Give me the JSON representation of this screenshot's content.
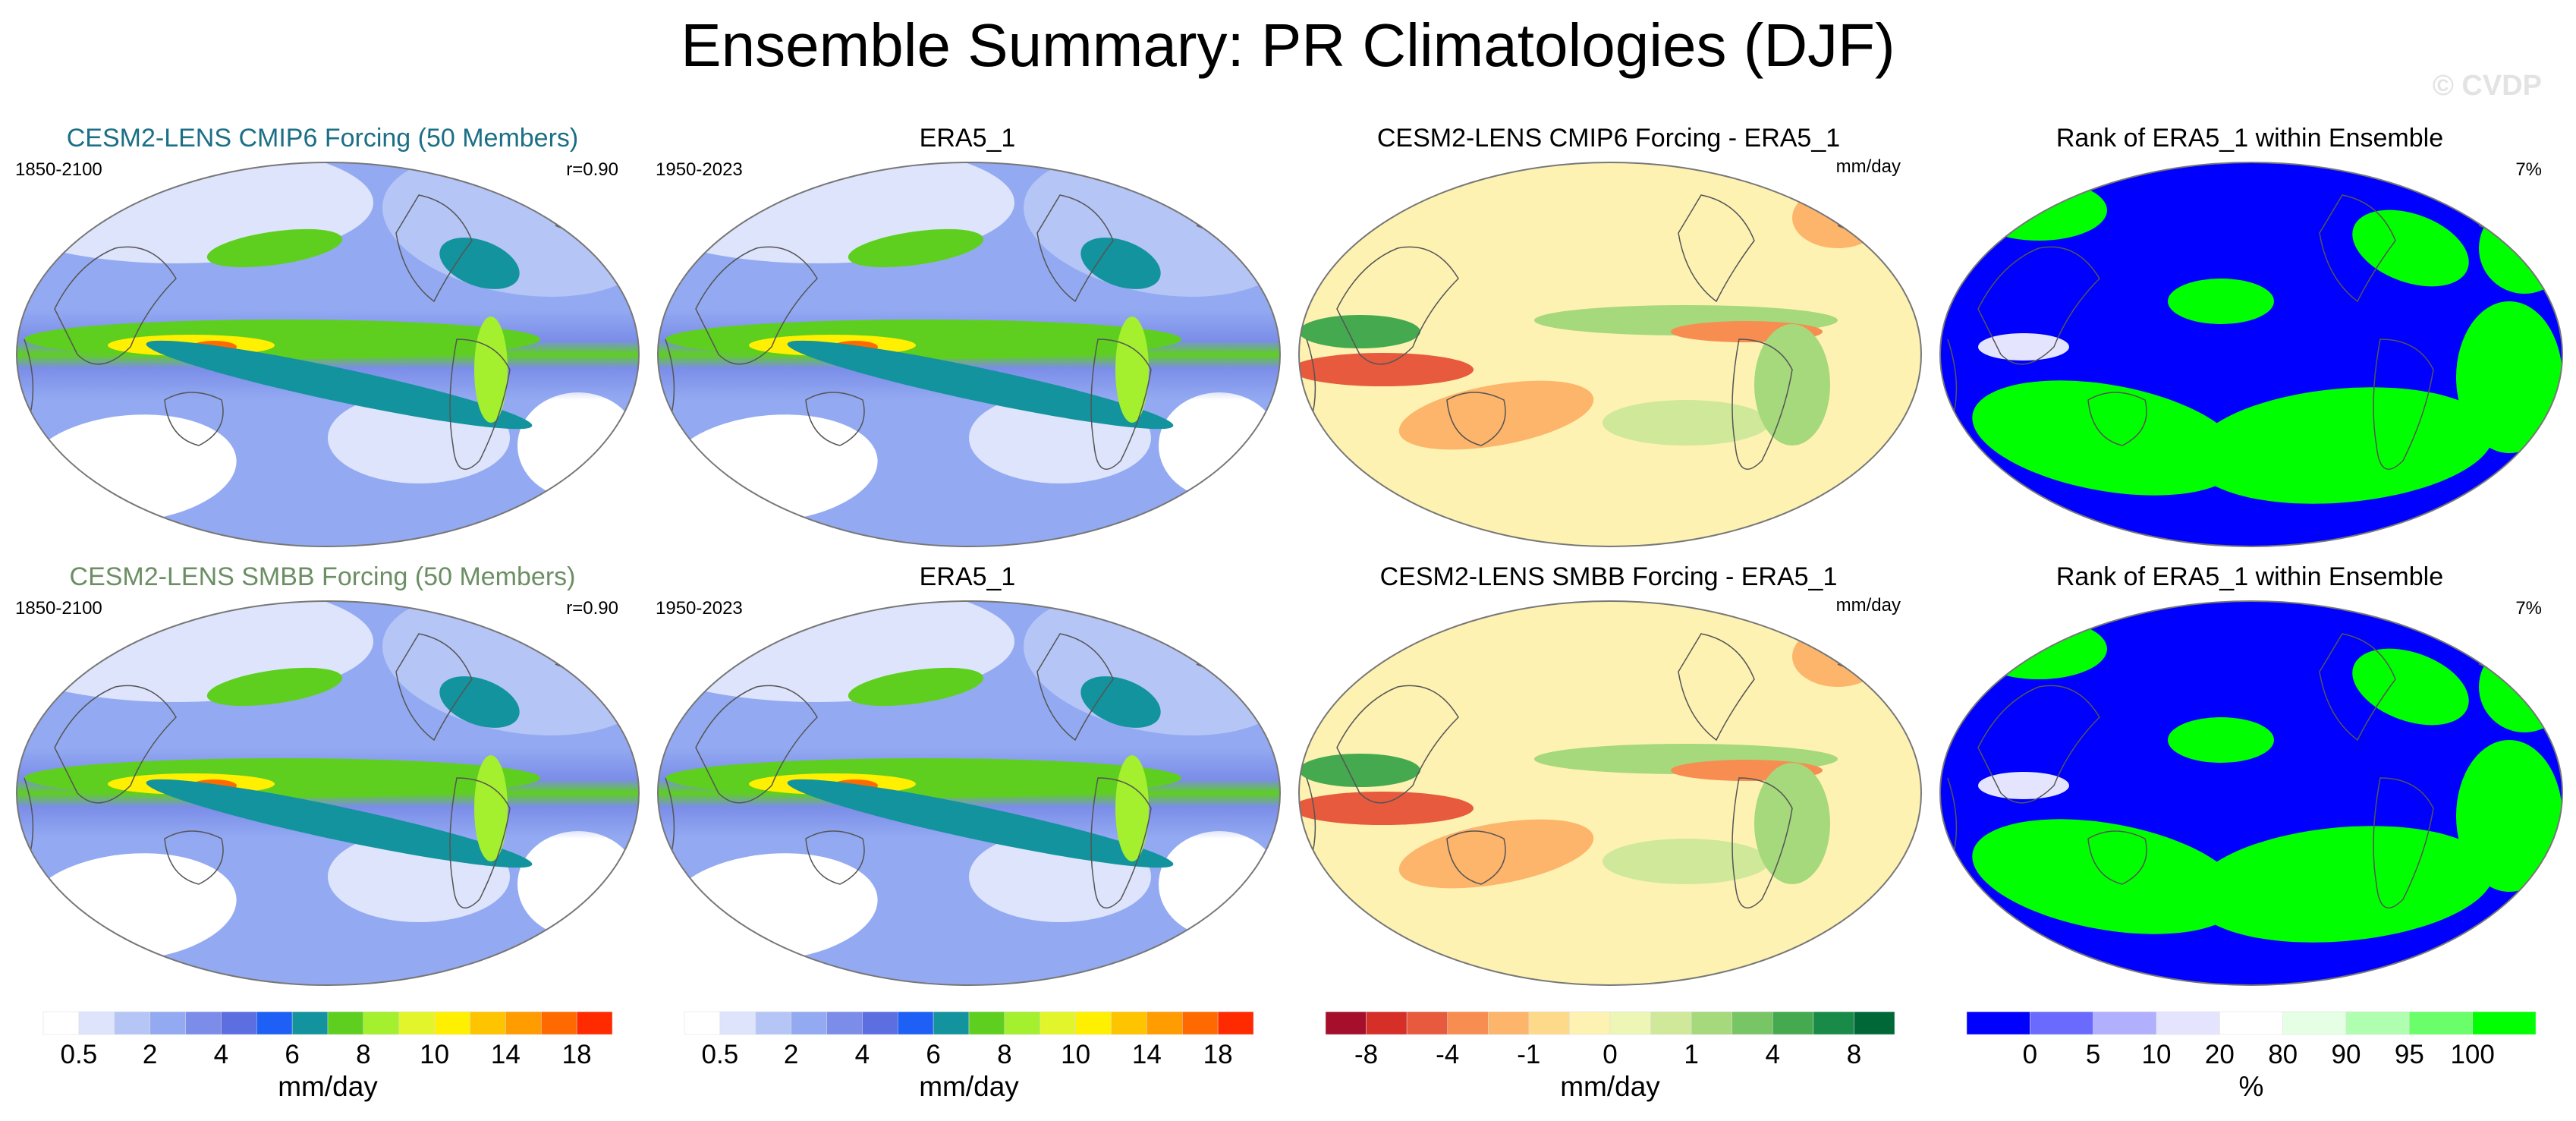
{
  "title": "Ensemble Summary: PR Climatologies (DJF)",
  "watermark": "© CVDP",
  "rows": [
    {
      "model_title": "CESM2-LENS CMIP6 Forcing (50 Members)",
      "model_title_color": "#1b6f86",
      "model_years": "1850-2100",
      "pattern_corr": "r=0.90",
      "obs_title": "ERA5_1",
      "obs_years": "1950-2023",
      "diff_title": "CESM2-LENS CMIP6 Forcing - ERA5_1",
      "diff_units": "mm/day",
      "rank_title": "Rank of ERA5_1 within Ensemble",
      "rank_pct": "7%"
    },
    {
      "model_title": "CESM2-LENS SMBB Forcing (50 Members)",
      "model_title_color": "#6b8f63",
      "model_years": "1850-2100",
      "pattern_corr": "r=0.90",
      "obs_title": "ERA5_1",
      "obs_years": "1950-2023",
      "diff_title": "CESM2-LENS SMBB Forcing - ERA5_1",
      "diff_units": "mm/day",
      "rank_title": "Rank of ERA5_1 within Ensemble",
      "rank_pct": "7%"
    }
  ],
  "colorbars": {
    "precip": {
      "units": "mm/day",
      "ticks": [
        "0.5",
        "2",
        "4",
        "6",
        "8",
        "10",
        "14",
        "18"
      ],
      "colors": [
        "#ffffff",
        "#dde4fb",
        "#b5c5f6",
        "#93aaf2",
        "#7b8de8",
        "#5d6ee0",
        "#1e5ff5",
        "#13939d",
        "#5fcf1f",
        "#a4ef2e",
        "#e2f52a",
        "#ffef00",
        "#ffc400",
        "#ff9c00",
        "#ff6a00",
        "#ff2a00"
      ]
    },
    "diff": {
      "units": "mm/day",
      "ticks": [
        "-8",
        "-4",
        "-1",
        "0",
        "1",
        "4",
        "8"
      ],
      "colors": [
        "#a50f2b",
        "#d62f27",
        "#e75a3d",
        "#f88d52",
        "#fdb46b",
        "#fdd98a",
        "#fdf2b2",
        "#eef6b5",
        "#cfe89a",
        "#a6d87c",
        "#78c565",
        "#45a94f",
        "#198a47",
        "#006837"
      ]
    },
    "rank": {
      "units": "%",
      "ticks": [
        "0",
        "5",
        "10",
        "20",
        "80",
        "90",
        "95",
        "100"
      ],
      "colors": [
        "#0000ff",
        "#6a6aff",
        "#b0b0ff",
        "#e4e4ff",
        "#ffffff",
        "#e4ffe4",
        "#b0ffb0",
        "#6aff6a",
        "#00ff00"
      ]
    }
  }
}
